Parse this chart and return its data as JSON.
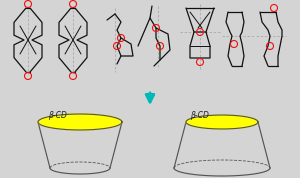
{
  "bg_color": "#d4d4d4",
  "arrow_color": "#00b8b8",
  "label_text": "β-CD",
  "label_fontsize": 5.5,
  "red_circle_color": "#ee1111",
  "dashed_line_color": "#aaaaaa",
  "molecule_line_color": "#111111",
  "cup_line_color": "#555555",
  "yellow_color": "#ffff00",
  "fig_w": 3.0,
  "fig_h": 1.78,
  "dpi": 100
}
